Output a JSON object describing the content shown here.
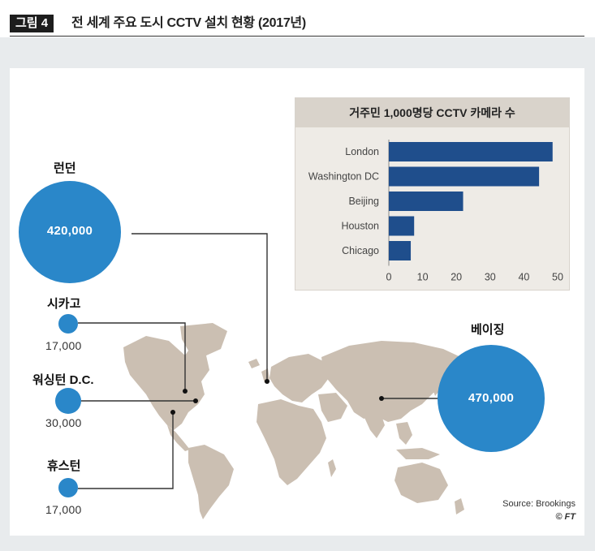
{
  "figure": {
    "badge": "그림 4",
    "title": "전 세계 주요 도시 CCTV 설치 현황 (2017년)"
  },
  "cities": [
    {
      "id": "london",
      "label": "런던",
      "value": "420,000"
    },
    {
      "id": "chicago",
      "label": "시카고",
      "value": "17,000"
    },
    {
      "id": "washington",
      "label": "워싱턴 D.C.",
      "value": "30,000"
    },
    {
      "id": "houston",
      "label": "휴스턴",
      "value": "17,000"
    },
    {
      "id": "beijing",
      "label": "베이징",
      "value": "470,000"
    }
  ],
  "chart_data": {
    "type": "bar",
    "orientation": "horizontal",
    "title": "거주민 1,000명당 CCTV 카메라 수",
    "categories": [
      "London",
      "Washington DC",
      "Beijing",
      "Houston",
      "Chicago"
    ],
    "values": [
      48.5,
      44.5,
      22,
      7.5,
      6.5
    ],
    "xticks": [
      "0",
      "10",
      "20",
      "30",
      "40",
      "50"
    ],
    "xlim": [
      0,
      50
    ],
    "grid": false,
    "bar_color": "#1f4e8c"
  },
  "colors": {
    "bubble": "#2a87c9",
    "map_land": "#cbbfb2",
    "leader_line": "#333333"
  },
  "source": {
    "line1": "Source: Brookings",
    "line2": "© FT"
  }
}
